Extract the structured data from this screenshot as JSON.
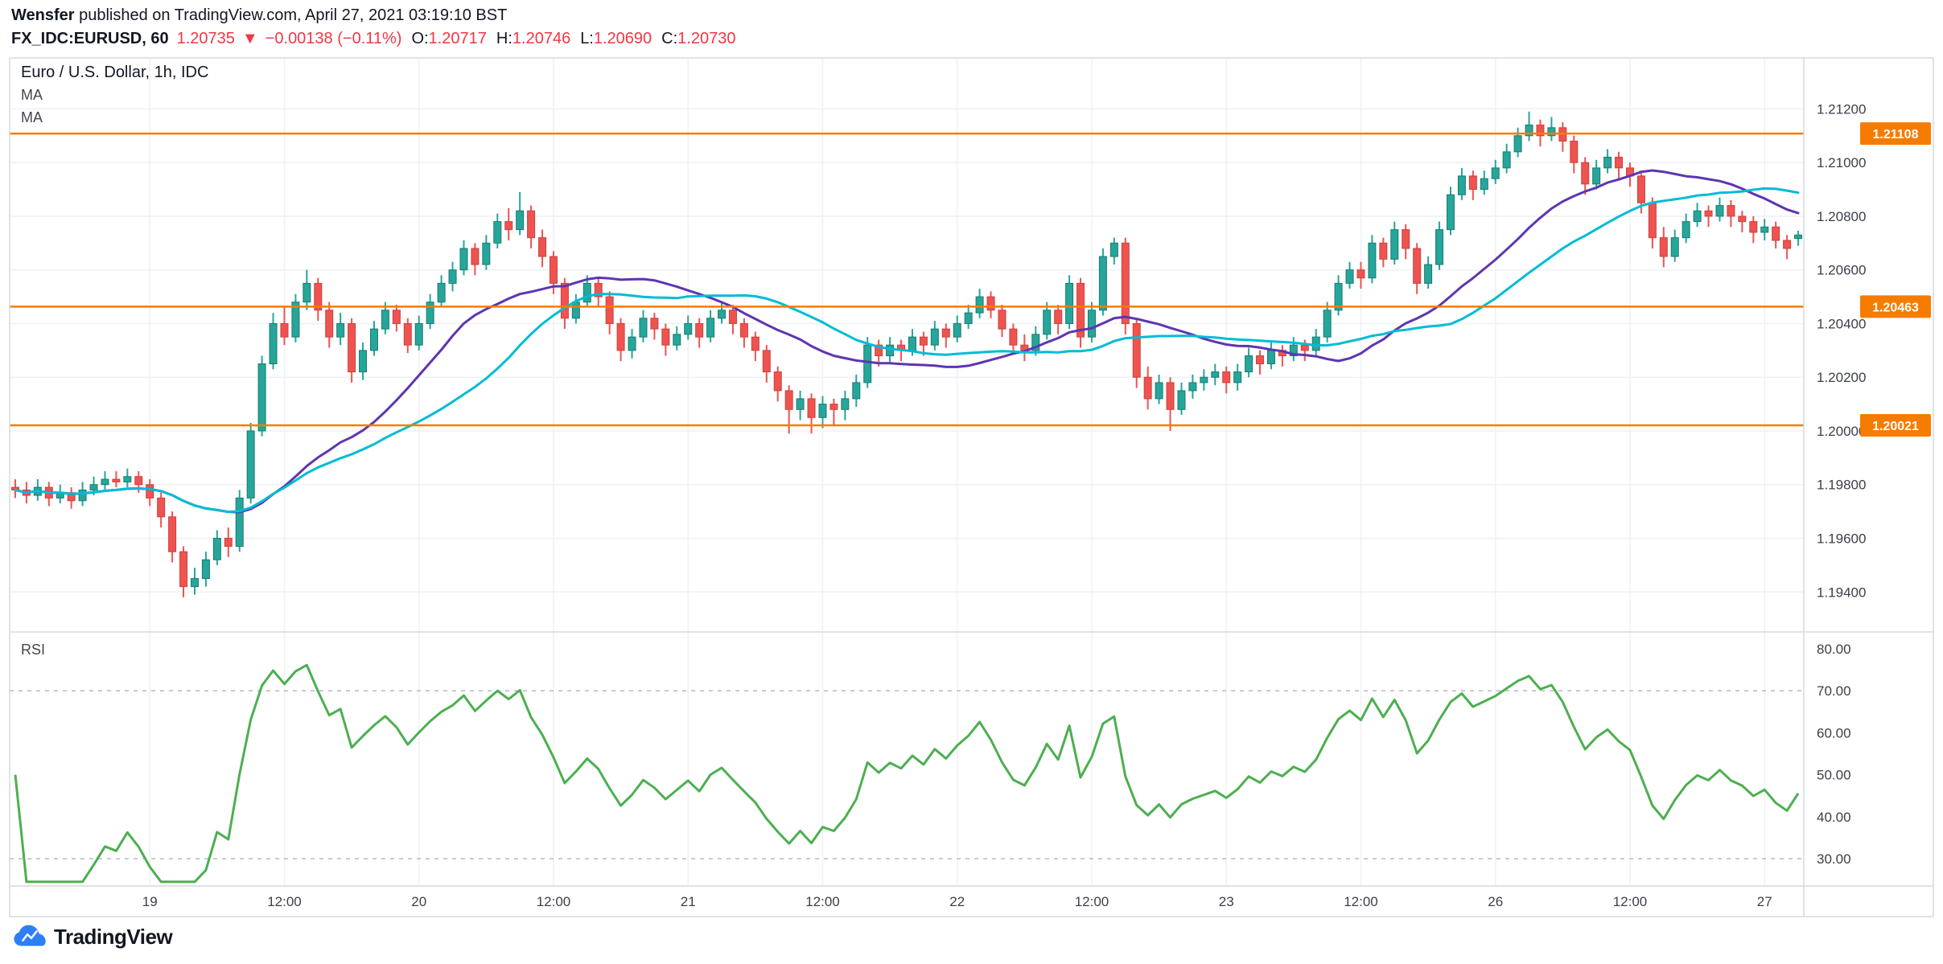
{
  "header": {
    "author": "Wensfer",
    "publish_meta": " published on TradingView.com, April 27, 2021 03:19:10 BST",
    "symbol": "FX_IDC:EURUSD, 60",
    "last": "1.20735",
    "arrow": "▼",
    "change": "−0.00138 (−0.11%)",
    "o_label": "O:",
    "o": "1.20717",
    "h_label": "H:",
    "h": "1.20746",
    "l_label": "L:",
    "l": "1.20690",
    "c_label": "C:",
    "c": "1.20730"
  },
  "legend": {
    "title": "Euro / U.S. Dollar, 1h, IDC",
    "ma1": "MA",
    "ma2": "MA",
    "rsi": "RSI"
  },
  "footer": {
    "brand": "TradingView"
  },
  "colors": {
    "up": "#26a69a",
    "up_border": "#1b7a71",
    "down": "#ef5350",
    "down_border": "#c9423e",
    "ma_fast": "#5e35b1",
    "ma_slow": "#00bcd4",
    "rsi": "#4caf50",
    "level": "#f57c00",
    "grid": "#eef1f6",
    "border": "#d6d9e0",
    "axis_text": "#3c4049",
    "red": "#f23645",
    "tag_text": "#ffffff"
  },
  "chart_data": {
    "type": "candlestick+rsi",
    "title": "Euro / U.S. Dollar, 1h, IDC",
    "interval": "60",
    "main": {
      "price_ticks": [
        "1.21200",
        "1.21000",
        "1.20800",
        "1.20600",
        "1.20400",
        "1.20200",
        "1.20000",
        "1.19800",
        "1.19600",
        "1.19400"
      ],
      "price_range": [
        1.19251,
        1.2139
      ],
      "h_lines": [
        {
          "v": 1.21108,
          "label": "1.21108"
        },
        {
          "v": 1.20463,
          "label": "1.20463"
        },
        {
          "v": 1.20021,
          "label": "1.20021"
        }
      ],
      "ma": [
        {
          "label": "MA",
          "period": 20,
          "color": "#5e35b1"
        },
        {
          "label": "MA",
          "period": 30,
          "color": "#00bcd4"
        }
      ],
      "candles": [
        [
          1.1979,
          1.1982,
          1.1975,
          1.1978
        ],
        [
          1.1978,
          1.1981,
          1.1973,
          1.1976
        ],
        [
          1.1976,
          1.1982,
          1.1974,
          1.1979
        ],
        [
          1.1979,
          1.1981,
          1.1972,
          1.1975
        ],
        [
          1.1975,
          1.198,
          1.1973,
          1.1977
        ],
        [
          1.1977,
          1.1979,
          1.1971,
          1.1974
        ],
        [
          1.1974,
          1.1981,
          1.1972,
          1.1978
        ],
        [
          1.1978,
          1.1983,
          1.1976,
          1.198
        ],
        [
          1.198,
          1.1985,
          1.1978,
          1.1982
        ],
        [
          1.1982,
          1.1985,
          1.1979,
          1.1981
        ],
        [
          1.1981,
          1.1986,
          1.1979,
          1.1983
        ],
        [
          1.1983,
          1.1985,
          1.1977,
          1.198
        ],
        [
          1.198,
          1.1982,
          1.1972,
          1.1975
        ],
        [
          1.1975,
          1.1977,
          1.1964,
          1.1968
        ],
        [
          1.1968,
          1.197,
          1.1951,
          1.1955
        ],
        [
          1.1955,
          1.1957,
          1.1938,
          1.1942
        ],
        [
          1.1942,
          1.1949,
          1.1939,
          1.1945
        ],
        [
          1.1945,
          1.1955,
          1.1942,
          1.1952
        ],
        [
          1.1952,
          1.1963,
          1.195,
          1.196
        ],
        [
          1.196,
          1.1964,
          1.1953,
          1.1957
        ],
        [
          1.1957,
          1.1978,
          1.1955,
          1.1975
        ],
        [
          1.1975,
          1.2003,
          1.1973,
          1.2
        ],
        [
          1.2,
          1.2028,
          1.1998,
          1.2025
        ],
        [
          1.2025,
          1.2044,
          1.2023,
          1.204
        ],
        [
          1.204,
          1.2046,
          1.2032,
          1.2035
        ],
        [
          1.2035,
          1.2051,
          1.2033,
          1.2048
        ],
        [
          1.2048,
          1.206,
          1.2045,
          1.2055
        ],
        [
          1.2055,
          1.2057,
          1.2041,
          1.2045
        ],
        [
          1.2045,
          1.2048,
          1.2031,
          1.2035
        ],
        [
          1.2035,
          1.2044,
          1.2032,
          1.204
        ],
        [
          1.204,
          1.2042,
          1.2018,
          1.2022
        ],
        [
          1.2022,
          1.2033,
          1.2019,
          1.203
        ],
        [
          1.203,
          1.2041,
          1.2028,
          1.2038
        ],
        [
          1.2038,
          1.2048,
          1.2036,
          1.2045
        ],
        [
          1.2045,
          1.2047,
          1.2037,
          1.204
        ],
        [
          1.204,
          1.2042,
          1.2029,
          1.2032
        ],
        [
          1.2032,
          1.2043,
          1.203,
          1.204
        ],
        [
          1.204,
          1.2051,
          1.2038,
          1.2048
        ],
        [
          1.2048,
          1.2058,
          1.2046,
          1.2055
        ],
        [
          1.2055,
          1.2063,
          1.2052,
          1.206
        ],
        [
          1.206,
          1.2071,
          1.2058,
          1.2068
        ],
        [
          1.2068,
          1.207,
          1.2058,
          1.2062
        ],
        [
          1.2062,
          1.2073,
          1.206,
          1.207
        ],
        [
          1.207,
          1.2081,
          1.2068,
          1.2078
        ],
        [
          1.2078,
          1.2083,
          1.2071,
          1.2075
        ],
        [
          1.2075,
          1.2089,
          1.2073,
          1.2082
        ],
        [
          1.2082,
          1.2084,
          1.2068,
          1.2072
        ],
        [
          1.2072,
          1.2075,
          1.2061,
          1.2065
        ],
        [
          1.2065,
          1.2067,
          1.2051,
          1.2055
        ],
        [
          1.2055,
          1.2057,
          1.2038,
          1.2042
        ],
        [
          1.2042,
          1.2051,
          1.204,
          1.2048
        ],
        [
          1.2048,
          1.2058,
          1.2046,
          1.2055
        ],
        [
          1.2055,
          1.2057,
          1.2046,
          1.205
        ],
        [
          1.205,
          1.2052,
          1.2036,
          1.204
        ],
        [
          1.204,
          1.2042,
          1.2026,
          1.203
        ],
        [
          1.203,
          1.2038,
          1.2027,
          1.2035
        ],
        [
          1.2035,
          1.2045,
          1.2033,
          1.2042
        ],
        [
          1.2042,
          1.2044,
          1.2034,
          1.2038
        ],
        [
          1.2038,
          1.204,
          1.2028,
          1.2032
        ],
        [
          1.2032,
          1.2039,
          1.203,
          1.2036
        ],
        [
          1.2036,
          1.2043,
          1.2034,
          1.204
        ],
        [
          1.204,
          1.2042,
          1.2031,
          1.2035
        ],
        [
          1.2035,
          1.2045,
          1.2033,
          1.2042
        ],
        [
          1.2042,
          1.2048,
          1.204,
          1.2045
        ],
        [
          1.2045,
          1.2047,
          1.2036,
          1.204
        ],
        [
          1.204,
          1.2042,
          1.2031,
          1.2035
        ],
        [
          1.2035,
          1.2037,
          1.2026,
          1.203
        ],
        [
          1.203,
          1.2032,
          1.2018,
          1.2022
        ],
        [
          1.2022,
          1.2024,
          1.2011,
          1.2015
        ],
        [
          1.2015,
          1.2017,
          1.1999,
          1.2008
        ],
        [
          1.2008,
          1.2015,
          1.2004,
          1.2012
        ],
        [
          1.2012,
          1.2014,
          1.1999,
          1.2005
        ],
        [
          1.2005,
          1.2013,
          1.2001,
          1.201
        ],
        [
          1.201,
          1.2012,
          1.2002,
          1.2008
        ],
        [
          1.2008,
          1.2015,
          1.2004,
          1.2012
        ],
        [
          1.2012,
          1.2021,
          1.2009,
          1.2018
        ],
        [
          1.2018,
          1.2035,
          1.2016,
          1.2032
        ],
        [
          1.2032,
          1.2034,
          1.2024,
          1.2028
        ],
        [
          1.2028,
          1.2035,
          1.2025,
          1.2032
        ],
        [
          1.2032,
          1.2034,
          1.2026,
          1.203
        ],
        [
          1.203,
          1.2038,
          1.2028,
          1.2035
        ],
        [
          1.2035,
          1.2037,
          1.2028,
          1.2032
        ],
        [
          1.2032,
          1.2041,
          1.203,
          1.2038
        ],
        [
          1.2038,
          1.204,
          1.2031,
          1.2035
        ],
        [
          1.2035,
          1.2043,
          1.2033,
          1.204
        ],
        [
          1.204,
          1.2047,
          1.2038,
          1.2044
        ],
        [
          1.2044,
          1.2053,
          1.2042,
          1.205
        ],
        [
          1.205,
          1.2052,
          1.2042,
          1.2045
        ],
        [
          1.2045,
          1.2047,
          1.2035,
          1.2038
        ],
        [
          1.2038,
          1.204,
          1.2029,
          1.2032
        ],
        [
          1.2032,
          1.2036,
          1.2026,
          1.203
        ],
        [
          1.203,
          1.2039,
          1.2028,
          1.2036
        ],
        [
          1.2036,
          1.2048,
          1.2034,
          1.2045
        ],
        [
          1.2045,
          1.2047,
          1.2036,
          1.204
        ],
        [
          1.204,
          1.2058,
          1.2038,
          1.2055
        ],
        [
          1.2055,
          1.2057,
          1.2031,
          1.2035
        ],
        [
          1.2035,
          1.2048,
          1.2033,
          1.2045
        ],
        [
          1.2045,
          1.2068,
          1.2043,
          1.2065
        ],
        [
          1.2065,
          1.2072,
          1.2062,
          1.207
        ],
        [
          1.207,
          1.2072,
          1.2036,
          1.204
        ],
        [
          1.204,
          1.2042,
          1.2016,
          1.202
        ],
        [
          1.202,
          1.2024,
          1.2008,
          1.2012
        ],
        [
          1.2012,
          1.2021,
          1.201,
          1.2018
        ],
        [
          1.2018,
          1.202,
          1.2,
          1.2008
        ],
        [
          1.2008,
          1.2018,
          1.2006,
          1.2015
        ],
        [
          1.2015,
          1.2021,
          1.2012,
          1.2018
        ],
        [
          1.2018,
          1.2023,
          1.2015,
          1.202
        ],
        [
          1.202,
          1.2025,
          1.2017,
          1.2022
        ],
        [
          1.2022,
          1.2024,
          1.2014,
          1.2018
        ],
        [
          1.2018,
          1.2025,
          1.2015,
          1.2022
        ],
        [
          1.2022,
          1.2031,
          1.202,
          1.2028
        ],
        [
          1.2028,
          1.203,
          1.2021,
          1.2025
        ],
        [
          1.2025,
          1.2033,
          1.2023,
          1.203
        ],
        [
          1.203,
          1.2032,
          1.2024,
          1.2028
        ],
        [
          1.2028,
          1.2035,
          1.2026,
          1.2032
        ],
        [
          1.2032,
          1.2034,
          1.2026,
          1.203
        ],
        [
          1.203,
          1.2038,
          1.2028,
          1.2035
        ],
        [
          1.2035,
          1.2048,
          1.2033,
          1.2045
        ],
        [
          1.2045,
          1.2058,
          1.2043,
          1.2055
        ],
        [
          1.2055,
          1.2063,
          1.2053,
          1.206
        ],
        [
          1.206,
          1.2063,
          1.2053,
          1.2057
        ],
        [
          1.2057,
          1.2073,
          1.2055,
          1.207
        ],
        [
          1.207,
          1.2072,
          1.2061,
          1.2064
        ],
        [
          1.2064,
          1.2078,
          1.2062,
          1.2075
        ],
        [
          1.2075,
          1.2077,
          1.2064,
          1.2068
        ],
        [
          1.2068,
          1.207,
          1.2051,
          1.2055
        ],
        [
          1.2055,
          1.2065,
          1.2053,
          1.2062
        ],
        [
          1.2062,
          1.2078,
          1.206,
          1.2075
        ],
        [
          1.2075,
          1.2091,
          1.2073,
          1.2088
        ],
        [
          1.2088,
          1.2098,
          1.2086,
          1.2095
        ],
        [
          1.2095,
          1.2097,
          1.2086,
          1.209
        ],
        [
          1.209,
          1.2097,
          1.2088,
          1.2094
        ],
        [
          1.2094,
          1.2101,
          1.2092,
          1.2098
        ],
        [
          1.2098,
          1.2107,
          1.2096,
          1.2104
        ],
        [
          1.2104,
          1.2113,
          1.2102,
          1.211
        ],
        [
          1.211,
          1.2119,
          1.2108,
          1.2114
        ],
        [
          1.2114,
          1.2116,
          1.2106,
          1.211
        ],
        [
          1.211,
          1.2117,
          1.2108,
          1.2113
        ],
        [
          1.2113,
          1.2115,
          1.2104,
          1.2108
        ],
        [
          1.2108,
          1.211,
          1.2096,
          1.21
        ],
        [
          1.21,
          1.2102,
          1.2088,
          1.2092
        ],
        [
          1.2092,
          1.2101,
          1.209,
          1.2098
        ],
        [
          1.2098,
          1.2105,
          1.2096,
          1.2102
        ],
        [
          1.2102,
          1.2104,
          1.2094,
          1.2098
        ],
        [
          1.2098,
          1.21,
          1.2091,
          1.2095
        ],
        [
          1.2095,
          1.2097,
          1.2081,
          1.2085
        ],
        [
          1.2085,
          1.2087,
          1.2068,
          1.2072
        ],
        [
          1.2072,
          1.2076,
          1.2061,
          1.2065
        ],
        [
          1.2065,
          1.2075,
          1.2063,
          1.2072
        ],
        [
          1.2072,
          1.2081,
          1.207,
          1.2078
        ],
        [
          1.2078,
          1.2085,
          1.2076,
          1.2082
        ],
        [
          1.2082,
          1.2084,
          1.2076,
          1.208
        ],
        [
          1.208,
          1.2087,
          1.2078,
          1.2084
        ],
        [
          1.2084,
          1.2086,
          1.2076,
          1.208
        ],
        [
          1.208,
          1.2082,
          1.2074,
          1.2078
        ],
        [
          1.2078,
          1.208,
          1.207,
          1.2074
        ],
        [
          1.2074,
          1.2079,
          1.2071,
          1.2076
        ],
        [
          1.2076,
          1.2078,
          1.2068,
          1.2071
        ],
        [
          1.2071,
          1.2073,
          1.2064,
          1.2068
        ],
        [
          1.20717,
          1.20746,
          1.2069,
          1.2073
        ]
      ]
    },
    "rsi": {
      "period": 14,
      "color": "#4caf50",
      "ticks": [
        {
          "v": 80,
          "label": "80.00"
        },
        {
          "v": 70,
          "label": "70.00"
        },
        {
          "v": 60,
          "label": "60.00"
        },
        {
          "v": 50,
          "label": "50.00"
        },
        {
          "v": 40,
          "label": "40.00"
        },
        {
          "v": 30,
          "label": "30.00"
        }
      ],
      "bands": [
        70,
        30
      ],
      "range": [
        23.5,
        84
      ]
    },
    "time_ticks": [
      {
        "i": 12,
        "label": "19"
      },
      {
        "i": 24,
        "label": "12:00"
      },
      {
        "i": 36,
        "label": "20"
      },
      {
        "i": 48,
        "label": "12:00"
      },
      {
        "i": 60,
        "label": "21"
      },
      {
        "i": 72,
        "label": "12:00"
      },
      {
        "i": 84,
        "label": "22"
      },
      {
        "i": 96,
        "label": "12:00"
      },
      {
        "i": 108,
        "label": "23"
      },
      {
        "i": 120,
        "label": "12:00"
      },
      {
        "i": 132,
        "label": "26"
      },
      {
        "i": 144,
        "label": "12:00"
      },
      {
        "i": 156,
        "label": "27"
      }
    ]
  }
}
